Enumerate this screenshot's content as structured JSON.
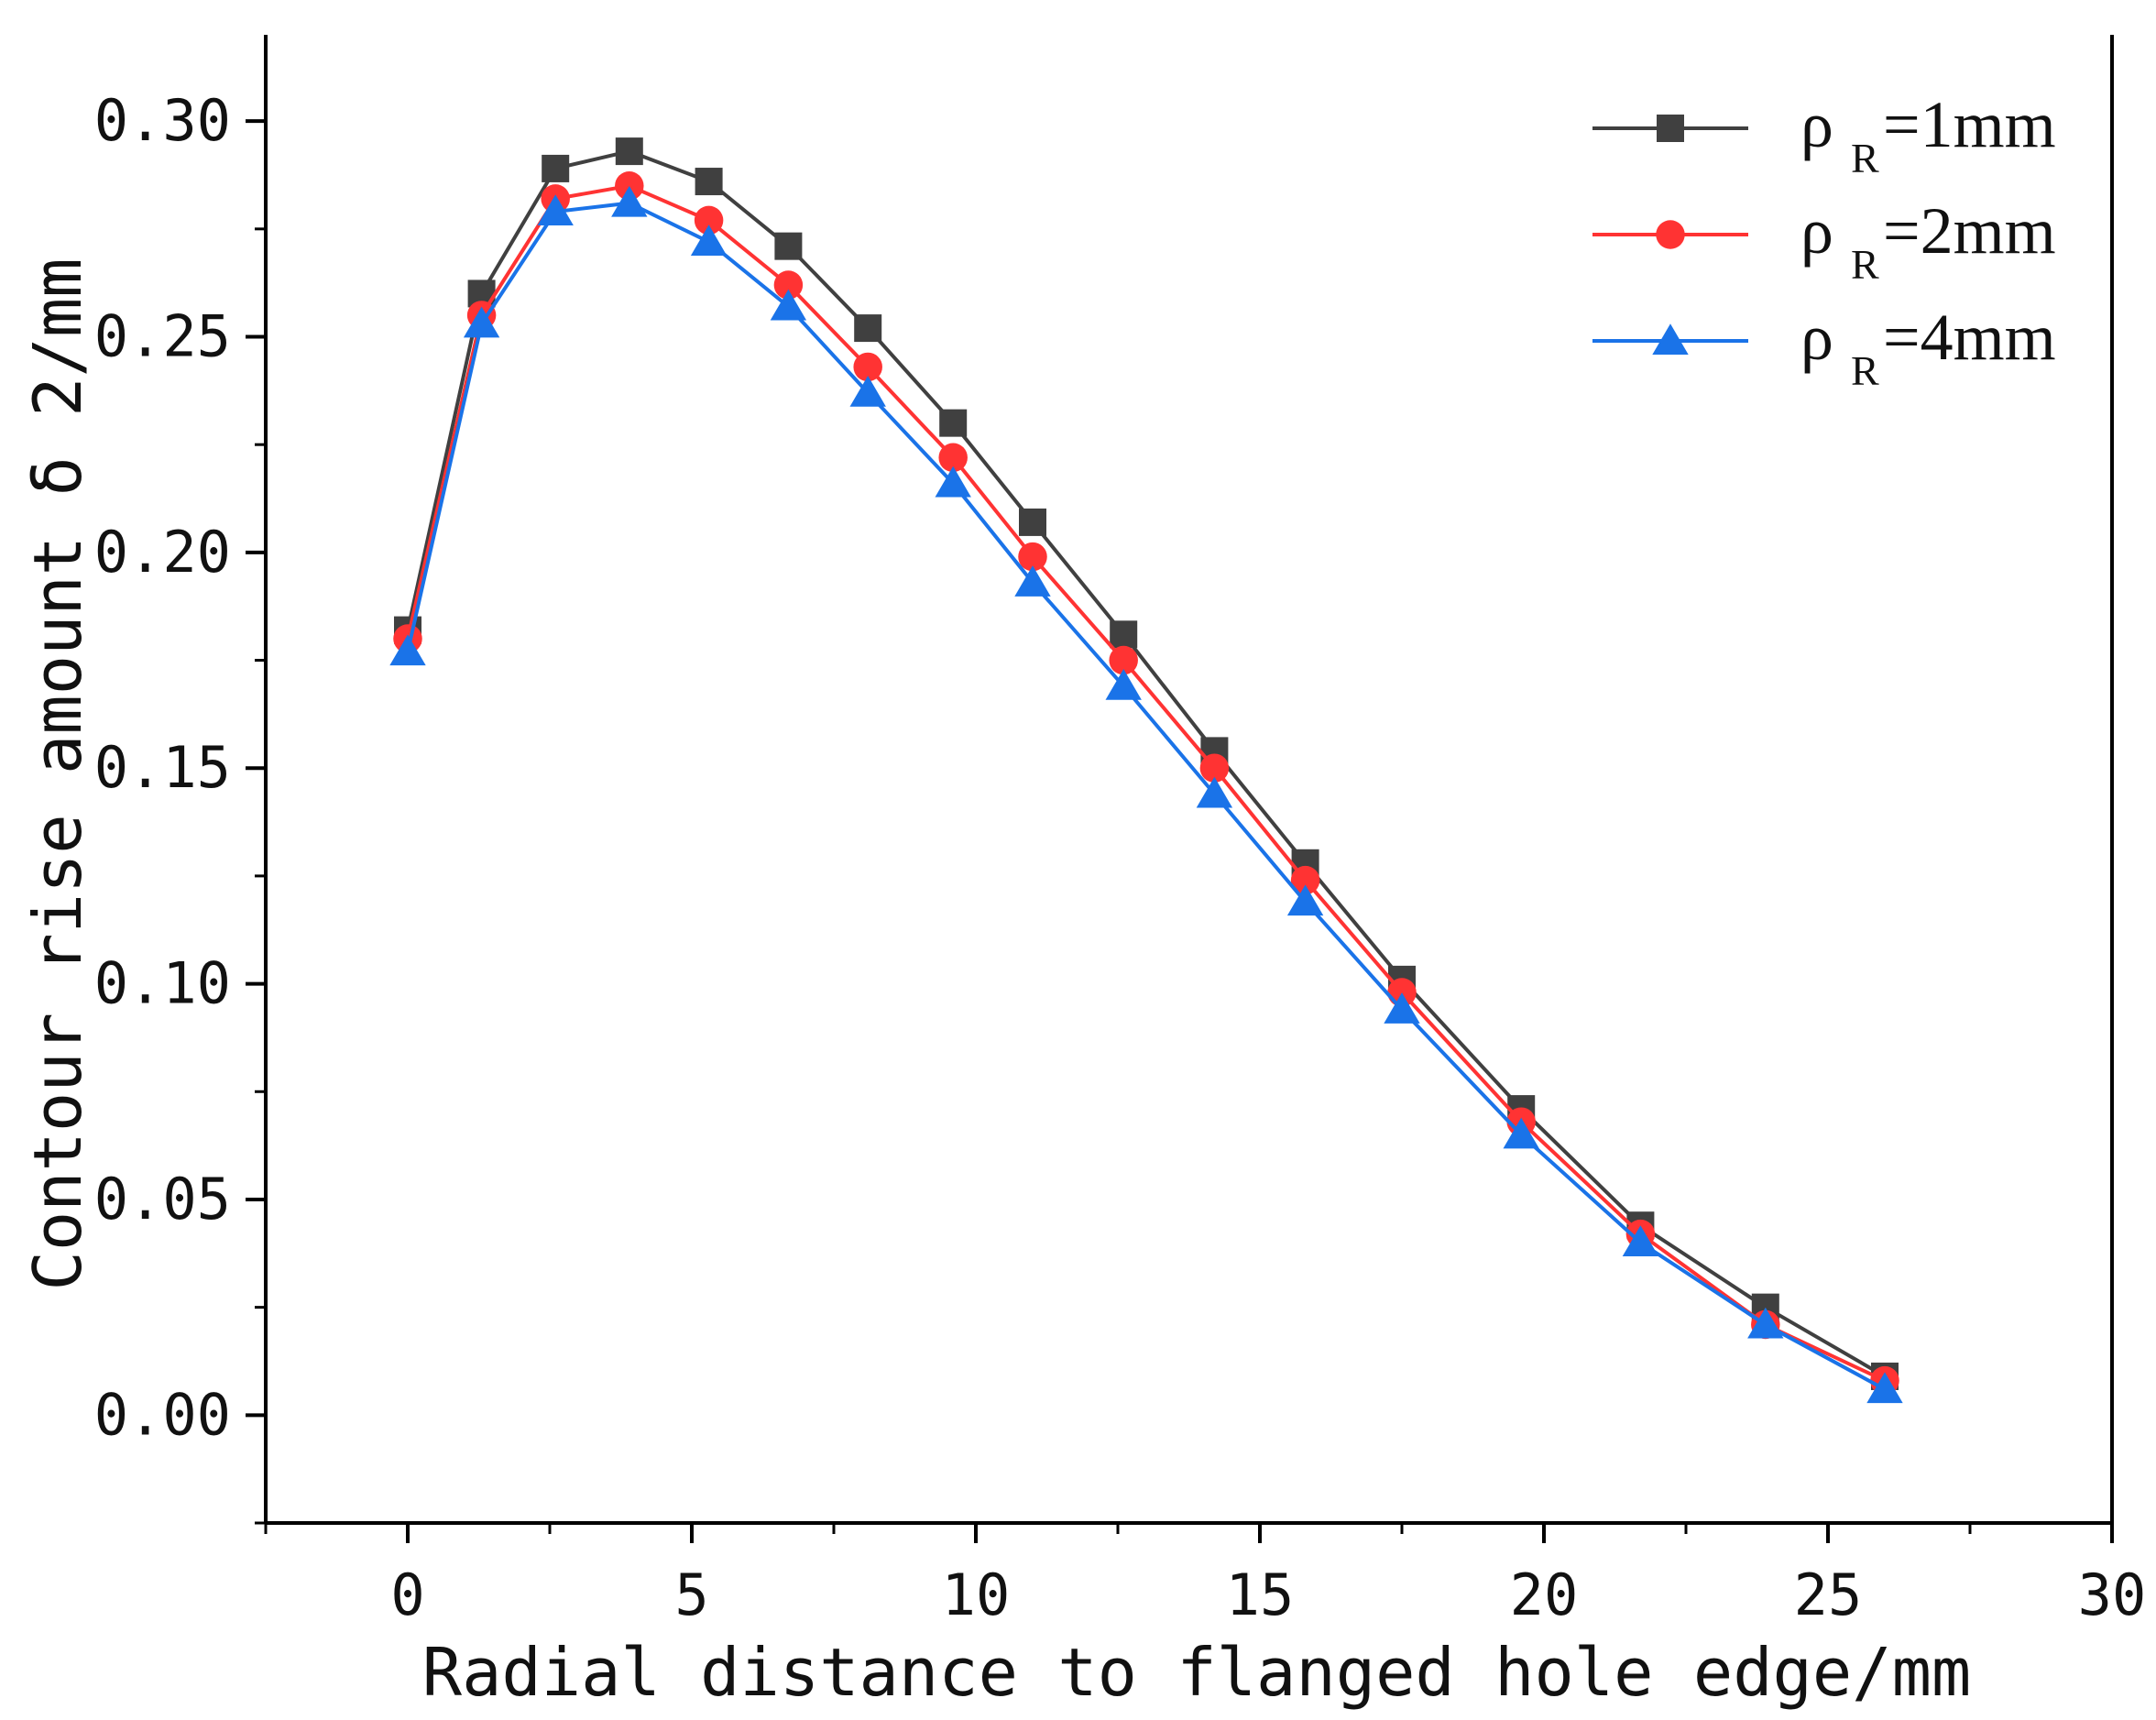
{
  "chart_data": {
    "type": "line",
    "title": "",
    "xlabel": "Radial distance to flanged hole edge/mm",
    "ylabel": "Contour rise amount δ 2/mm",
    "xlim": [
      -2.5,
      30
    ],
    "ylim": [
      -0.025,
      0.32
    ],
    "x_ticks": [
      0,
      5,
      10,
      15,
      20,
      25,
      30
    ],
    "x_tick_labels": [
      "0",
      "5",
      "10",
      "15",
      "20",
      "25",
      "30"
    ],
    "y_ticks": [
      0.0,
      0.05,
      0.1,
      0.15,
      0.2,
      0.25,
      0.3
    ],
    "y_tick_labels": [
      "0.00",
      "0.05",
      "0.10",
      "0.15",
      "0.20",
      "0.25",
      "0.30"
    ],
    "grid": false,
    "legend_position": "top-right",
    "series": [
      {
        "name": "ρ R=1mm",
        "legend_main": "ρ",
        "legend_sub": "R",
        "legend_rest": "=1mm",
        "color": "#404040",
        "marker": "square",
        "x": [
          0,
          1.3,
          2.6,
          3.9,
          5.3,
          6.7,
          8.1,
          9.6,
          11.0,
          12.6,
          14.2,
          15.8,
          17.5,
          19.6,
          21.7,
          23.9,
          26.0
        ],
        "y": [
          0.182,
          0.26,
          0.289,
          0.293,
          0.286,
          0.271,
          0.252,
          0.23,
          0.207,
          0.181,
          0.154,
          0.128,
          0.101,
          0.071,
          0.044,
          0.025,
          0.009
        ]
      },
      {
        "name": "ρ R=2mm",
        "legend_main": "ρ",
        "legend_sub": "R",
        "legend_rest": "=2mm",
        "color": "#ff3333",
        "marker": "circle",
        "x": [
          0,
          1.3,
          2.6,
          3.9,
          5.3,
          6.7,
          8.1,
          9.6,
          11.0,
          12.6,
          14.2,
          15.8,
          17.5,
          19.6,
          21.7,
          23.9,
          26.0
        ],
        "y": [
          0.18,
          0.255,
          0.282,
          0.285,
          0.277,
          0.262,
          0.243,
          0.222,
          0.199,
          0.175,
          0.15,
          0.124,
          0.098,
          0.068,
          0.042,
          0.021,
          0.008
        ]
      },
      {
        "name": "ρ R=4mm",
        "legend_main": "ρ",
        "legend_sub": "R",
        "legend_rest": "=4mm",
        "color": "#1a73e8",
        "marker": "triangle",
        "x": [
          0,
          1.3,
          2.6,
          3.9,
          5.3,
          6.7,
          8.1,
          9.6,
          11.0,
          12.6,
          14.2,
          15.8,
          17.5,
          19.6,
          21.7,
          23.9,
          26.0
        ],
        "y": [
          0.177,
          0.253,
          0.279,
          0.281,
          0.272,
          0.257,
          0.237,
          0.216,
          0.193,
          0.169,
          0.144,
          0.119,
          0.094,
          0.065,
          0.04,
          0.021,
          0.006
        ]
      }
    ]
  }
}
